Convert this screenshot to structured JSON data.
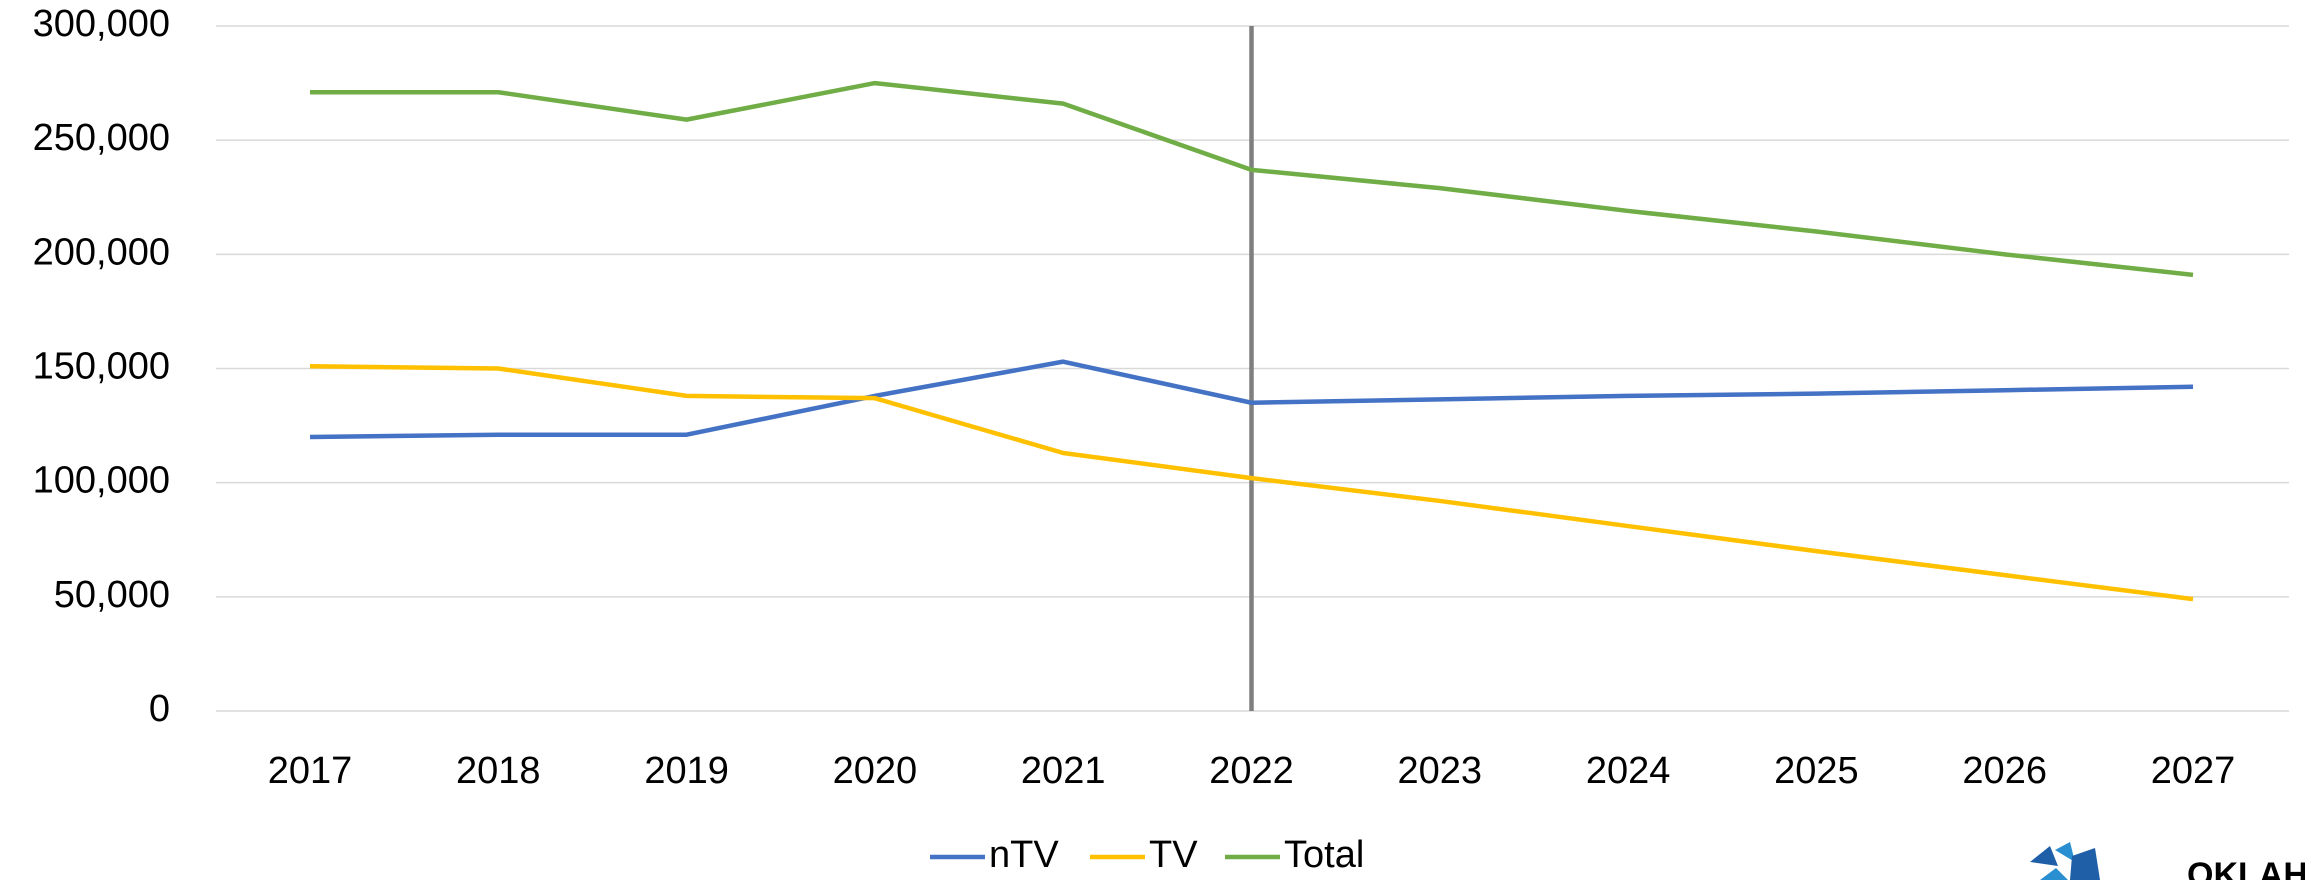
{
  "chart_data": {
    "type": "line",
    "categories": [
      "2017",
      "2018",
      "2019",
      "2020",
      "2021",
      "2022",
      "2023",
      "2024",
      "2025",
      "2026",
      "2027"
    ],
    "series": [
      {
        "name": "nTV",
        "color": "#4472c4",
        "values": [
          120000,
          121000,
          121000,
          138000,
          153000,
          135000,
          136500,
          138000,
          139000,
          140500,
          142000
        ]
      },
      {
        "name": "TV",
        "color": "#ffc000",
        "values": [
          151000,
          150000,
          138000,
          137000,
          113000,
          102000,
          92000,
          81000,
          70000,
          59500,
          49000
        ]
      },
      {
        "name": "Total",
        "color": "#70ad47",
        "values": [
          271000,
          271000,
          259000,
          275000,
          266000,
          237000,
          229000,
          219000,
          210000,
          200000,
          191000
        ]
      }
    ],
    "ylim": [
      0,
      300000
    ],
    "yticks": [
      0,
      {
        "value": 50000,
        "label": "50,000"
      },
      {
        "value": 100000,
        "label": "100,000"
      },
      {
        "value": 150000,
        "label": "150,000"
      },
      {
        "value": 200000,
        "label": "200,000"
      },
      {
        "value": 250000,
        "label": "250,000"
      },
      {
        "value": 300000,
        "label": "300,000"
      }
    ],
    "grid": true,
    "vline": "2022",
    "legend": "bottom",
    "logo_text": "OKLAHO"
  }
}
